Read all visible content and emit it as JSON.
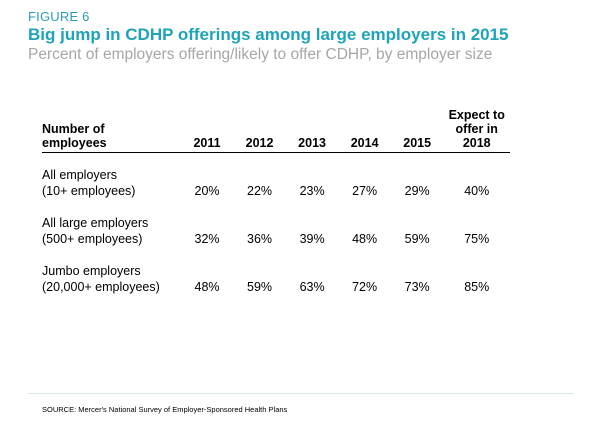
{
  "figure_label": "FIGURE 6",
  "title": "Big jump in CDHP offerings among large employers in 2015",
  "subtitle": "Percent of employers offering/likely to offer CDHP, by employer size",
  "source": "SOURCE: Mercer's National Survey of Employer-Sponsored Health Plans",
  "colors": {
    "accent": "#1fa3b8",
    "subtitle": "#a6a6a6",
    "rule": "#000000"
  },
  "chart_data": {
    "type": "table",
    "title": "Big jump in CDHP offerings among large employers in 2015",
    "subtitle": "Percent of employers offering/likely to offer CDHP, by employer size",
    "row_header": "Number of employees",
    "columns": [
      "2011",
      "2012",
      "2013",
      "2014",
      "2015",
      "Expect to offer in 2018"
    ],
    "rows": [
      {
        "line1": "All employers",
        "line2": "(10+ employees)",
        "values": [
          "20%",
          "22%",
          "23%",
          "27%",
          "29%",
          "40%"
        ]
      },
      {
        "line1": "All large employers",
        "line2": "(500+ employees)",
        "values": [
          "32%",
          "36%",
          "39%",
          "48%",
          "59%",
          "75%"
        ]
      },
      {
        "line1": "Jumbo employers",
        "line2": "(20,000+ employees)",
        "values": [
          "48%",
          "59%",
          "63%",
          "72%",
          "73%",
          "85%"
        ]
      }
    ]
  }
}
